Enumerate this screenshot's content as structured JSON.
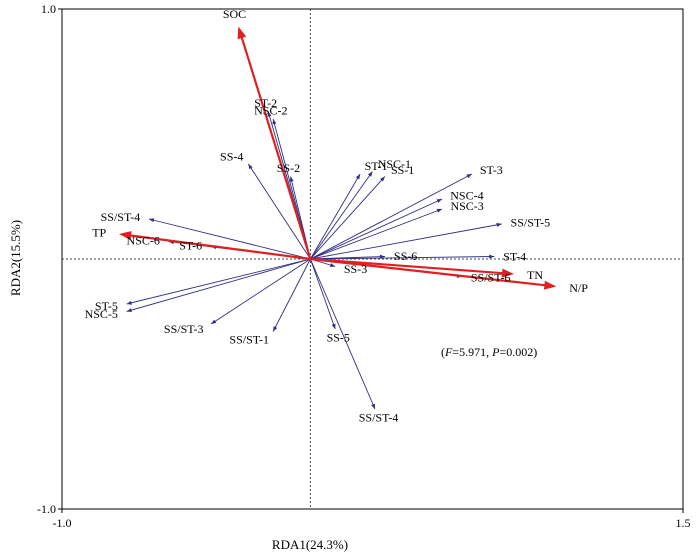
{
  "chart_data": {
    "type": "scatter",
    "subtype": "rda-biplot",
    "xlabel": "RDA1(24.3%)",
    "ylabel": "RDA2(15.5%)",
    "xlim": [
      -1.0,
      1.5
    ],
    "ylim": [
      -1.0,
      1.0
    ],
    "x_ticks": [
      "-1.0",
      "1.5"
    ],
    "y_ticks": [
      "1.0",
      "-1.0"
    ],
    "grid": false,
    "reference_lines": {
      "x": 0,
      "y": 0,
      "style": "dotted"
    },
    "annotation": {
      "F": "5.971",
      "P": "0.002"
    },
    "colors": {
      "environment": "#e02020",
      "species": "#2e2e82"
    },
    "environment_vectors": [
      {
        "name": "SOC",
        "x": -0.29,
        "y": 0.93
      },
      {
        "name": "TP",
        "x": -0.77,
        "y": 0.1
      },
      {
        "name": "TN",
        "x": 0.82,
        "y": -0.06
      },
      {
        "name": "N/P",
        "x": 0.99,
        "y": -0.11
      }
    ],
    "species_vectors": [
      {
        "name": "ST-2",
        "x": -0.17,
        "y": 0.59
      },
      {
        "name": "NSC-2",
        "x": -0.15,
        "y": 0.56
      },
      {
        "name": "SS-4",
        "x": -0.25,
        "y": 0.38
      },
      {
        "name": "SS-2",
        "x": -0.08,
        "y": 0.33
      },
      {
        "name": "ST-1",
        "x": 0.2,
        "y": 0.34
      },
      {
        "name": "NSC-1",
        "x": 0.25,
        "y": 0.35
      },
      {
        "name": "SS-1",
        "x": 0.3,
        "y": 0.33
      },
      {
        "name": "ST-3",
        "x": 0.65,
        "y": 0.34
      },
      {
        "name": "NSC-4",
        "x": 0.53,
        "y": 0.24
      },
      {
        "name": "NSC-3",
        "x": 0.53,
        "y": 0.2
      },
      {
        "name": "SS/ST-5",
        "x": 0.77,
        "y": 0.14
      },
      {
        "name": "SS/ST-4",
        "x": -0.65,
        "y": 0.16
      },
      {
        "name": "NSC-6",
        "x": -0.57,
        "y": 0.07
      },
      {
        "name": "ST-6",
        "x": -0.4,
        "y": 0.05
      },
      {
        "name": "SS-6",
        "x": 0.3,
        "y": 0.01
      },
      {
        "name": "ST-4",
        "x": 0.74,
        "y": 0.01
      },
      {
        "name": "SS-3",
        "x": 0.1,
        "y": -0.03
      },
      {
        "name": "SS/ST-6",
        "x": 0.61,
        "y": -0.07
      },
      {
        "name": "ST-5",
        "x": -0.74,
        "y": -0.18
      },
      {
        "name": "NSC-5",
        "x": -0.74,
        "y": -0.21
      },
      {
        "name": "SS/ST-3",
        "x": -0.4,
        "y": -0.26
      },
      {
        "name": "SS/ST-1",
        "x": -0.15,
        "y": -0.29
      },
      {
        "name": "SS-5",
        "x": 0.1,
        "y": -0.28
      },
      {
        "name": "SS/ST-4",
        "x": 0.26,
        "y": -0.6
      }
    ]
  }
}
